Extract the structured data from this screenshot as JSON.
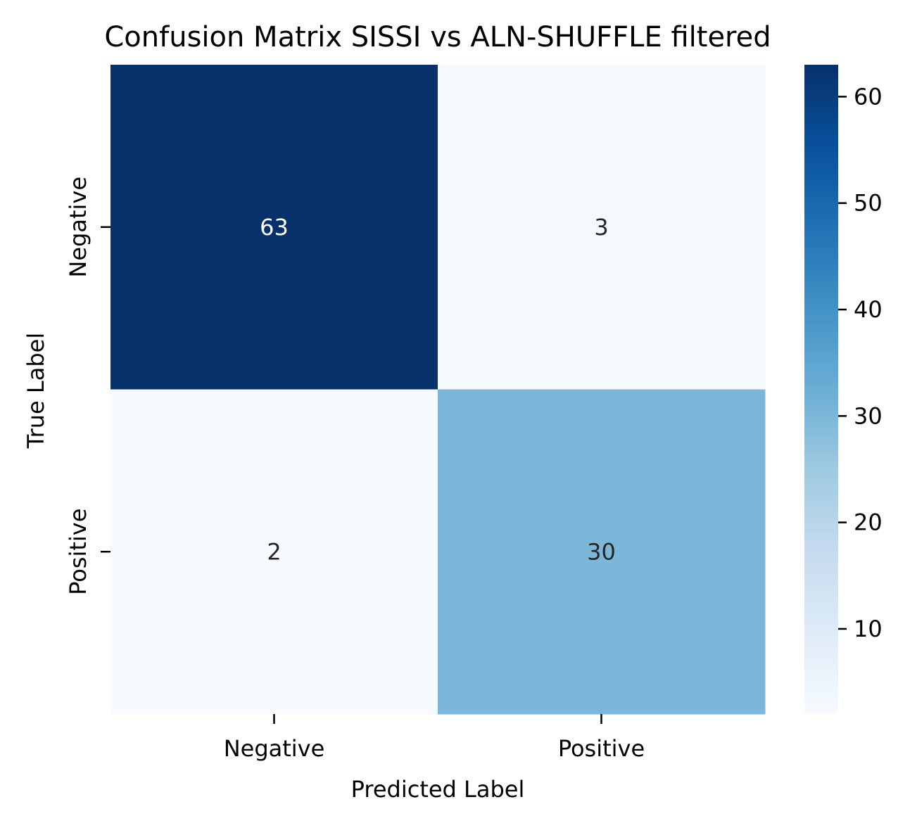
{
  "chart_data": {
    "type": "heatmap",
    "title": "Confusion Matrix SISSI vs ALN-SHUFFLE filtered",
    "xlabel": "Predicted Label",
    "ylabel": "True Label",
    "x_categories": [
      "Negative",
      "Positive"
    ],
    "y_categories": [
      "Negative",
      "Positive"
    ],
    "values": [
      [
        63,
        3
      ],
      [
        2,
        30
      ]
    ],
    "colormap": "Blues",
    "colorbar": {
      "range": [
        2,
        63
      ],
      "ticks": [
        10,
        20,
        30,
        40,
        50,
        60
      ],
      "tick_labels": [
        "10",
        "20",
        "30",
        "40",
        "50",
        "60"
      ]
    },
    "grid": false,
    "legend": "colorbar-right"
  }
}
